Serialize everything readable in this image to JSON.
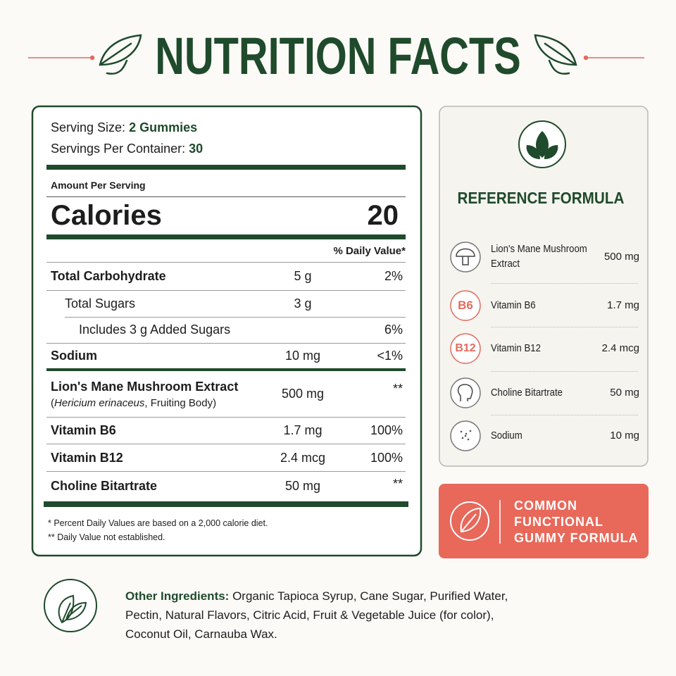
{
  "title": "NUTRITION FACTS",
  "label": {
    "serving_size": {
      "label": "Serving Size:",
      "value": "2 Gummies"
    },
    "servings_per_container": {
      "label": "Servings Per Container:",
      "value": "30"
    },
    "amount_per_serving": "Amount Per Serving",
    "calories": {
      "label": "Calories",
      "value": "20"
    },
    "dv_header": "% Daily Value*",
    "rows": [
      {
        "name": "Total Carbohydrate",
        "amount": "5 g",
        "dv": "2%"
      },
      {
        "name": "Total Sugars",
        "amount": "3 g"
      },
      {
        "name": "Includes 3 g Added Sugars",
        "dv": "6%"
      },
      {
        "name": "Sodium",
        "amount": "10 mg",
        "dv": "<1%"
      },
      {
        "name": "Lion's Mane Mushroom Extract",
        "sub": [
          "(",
          "Hericium erinaceus",
          ", Fruiting Body)"
        ],
        "amount": "500 mg",
        "dv": "**"
      },
      {
        "name": "Vitamin B6",
        "amount": "1.7 mg",
        "dv": "100%"
      },
      {
        "name": "Vitamin B12",
        "amount": "2.4 mcg",
        "dv": "100%"
      },
      {
        "name": "Choline Bitartrate",
        "amount": "50 mg",
        "dv": "**"
      }
    ],
    "footnotes": [
      "* Percent Daily Values are based on a 2,000 calorie diet.",
      "** Daily Value not established."
    ]
  },
  "reference": {
    "title": "REFERENCE FORMULA",
    "items": [
      {
        "name": [
          "Lion's Mane Mushroom",
          "Extract"
        ],
        "amount": "500 mg"
      },
      {
        "icon": "B6",
        "name": [
          "Vitamin B6"
        ],
        "amount": "1.7 mg"
      },
      {
        "icon": "B12",
        "name": [
          "Vitamin B12"
        ],
        "amount": "2.4 mcg"
      },
      {
        "name": [
          "Choline Bitartrate"
        ],
        "amount": "50 mg"
      },
      {
        "name": [
          "Sodium"
        ],
        "amount": "10 mg"
      }
    ]
  },
  "badge": [
    "COMMON",
    "FUNCTIONAL",
    "GUMMY FORMULA"
  ],
  "ingredients": {
    "label": "Other Ingredients:",
    "lines": [
      " Organic Tapioca Syrup, Cane Sugar, Purified Water,",
      "Pectin, Natural Flavors, Citric Acid, Fruit & Vegetable Juice (for color),",
      "Coconut Oil, Carnauba Wax."
    ]
  }
}
